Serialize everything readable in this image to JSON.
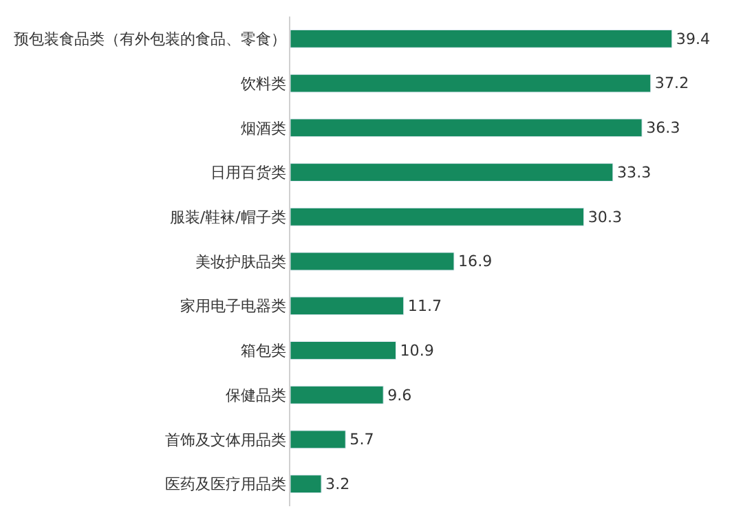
{
  "chart_data": {
    "type": "bar",
    "orientation": "horizontal",
    "categories": [
      "预包装食品类（有外包装的食品、零食）",
      "饮料类",
      "烟酒类",
      "日用百货类",
      "服装/鞋袜/帽子类",
      "美妆护肤品类",
      "家用电子电器类",
      "箱包类",
      "保健品类",
      "首饰及文体用品类",
      "医药及医疗用品类"
    ],
    "values": [
      39.4,
      37.2,
      36.3,
      33.3,
      30.3,
      16.9,
      11.7,
      10.9,
      9.6,
      5.7,
      3.2
    ],
    "color": "#158a5e",
    "data_labels": true,
    "legend": false,
    "tick_labels": "y"
  }
}
